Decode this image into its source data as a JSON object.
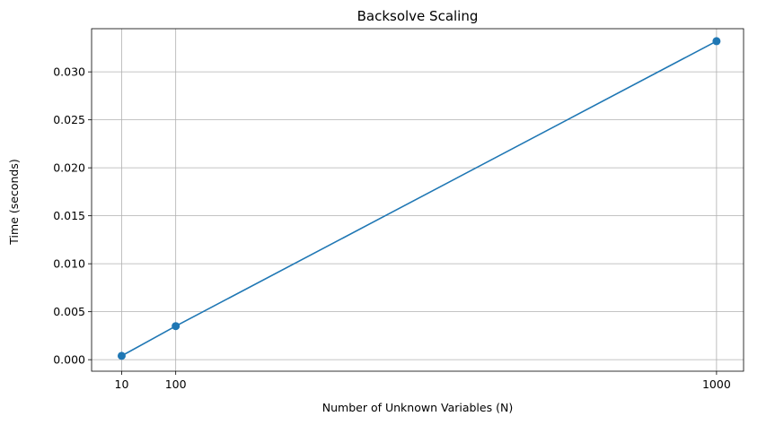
{
  "chart_data": {
    "type": "line",
    "title": "Backsolve Scaling",
    "xlabel": "Number of Unknown Variables (N)",
    "ylabel": "Time (seconds)",
    "x": [
      10,
      100,
      1000
    ],
    "series": [
      {
        "values": [
          0.0004,
          0.0035,
          0.0332
        ],
        "color": "#1f77b4",
        "marker": "circle"
      }
    ],
    "xlim": [
      -40,
      1045
    ],
    "ylim": [
      -0.0012,
      0.0345
    ],
    "xticks": [
      10,
      100,
      1000
    ],
    "xtick_labels": [
      "10",
      "100",
      "1000"
    ],
    "yticks": [
      0.0,
      0.005,
      0.01,
      0.015,
      0.02,
      0.025,
      0.03
    ],
    "ytick_labels": [
      "0.000",
      "0.005",
      "0.010",
      "0.015",
      "0.020",
      "0.025",
      "0.030"
    ],
    "grid": true,
    "legend": "none"
  }
}
